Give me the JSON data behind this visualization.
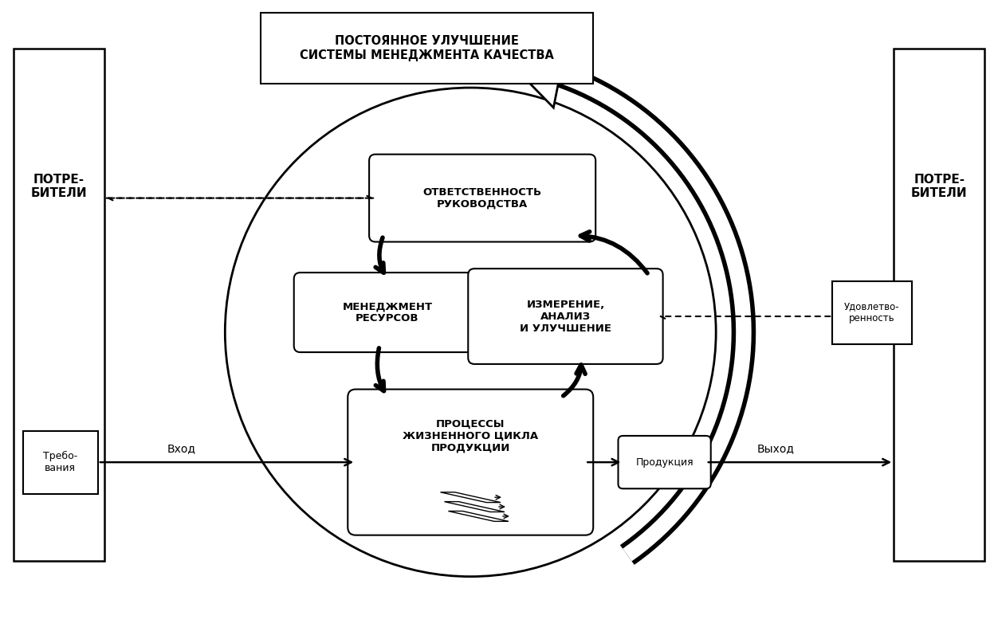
{
  "title_top": "ПОСТОЯННОЕ УЛУЧШЕНИЕ\nСИСТЕМЫ МЕНЕДЖМЕНТА КАЧЕСТВА",
  "box_left_top": "ПОТРЕ-\nБИТЕЛИ",
  "box_right_top": "ПОТРЕ-\nБИТЕЛИ",
  "box_left_bottom": "Требо-\nвания",
  "box_right_bottom_1": "Удовлетво-\nренность",
  "label_vhod": "Вход",
  "label_vyhod": "Выход",
  "label_produkciya": "Продукция",
  "box_otvetstvennost": "ОТВЕТСТВЕННОСТЬ\nРУКОВОДСТВА",
  "box_menedzhment": "МЕНЕДЖМЕНТ\nРЕСУРСОВ",
  "box_izmerenie": "ИЗМЕРЕНИЕ,\nАНАЛИЗ\nИ УЛУЧШЕНИЕ",
  "box_processy": "ПРОЦЕССЫ\nЖИЗНЕННОГО ЦИКЛА\nПРОДУКЦИИ",
  "bg_color": "#ffffff",
  "fig_w": 12.52,
  "fig_h": 8.02,
  "dpi": 100
}
